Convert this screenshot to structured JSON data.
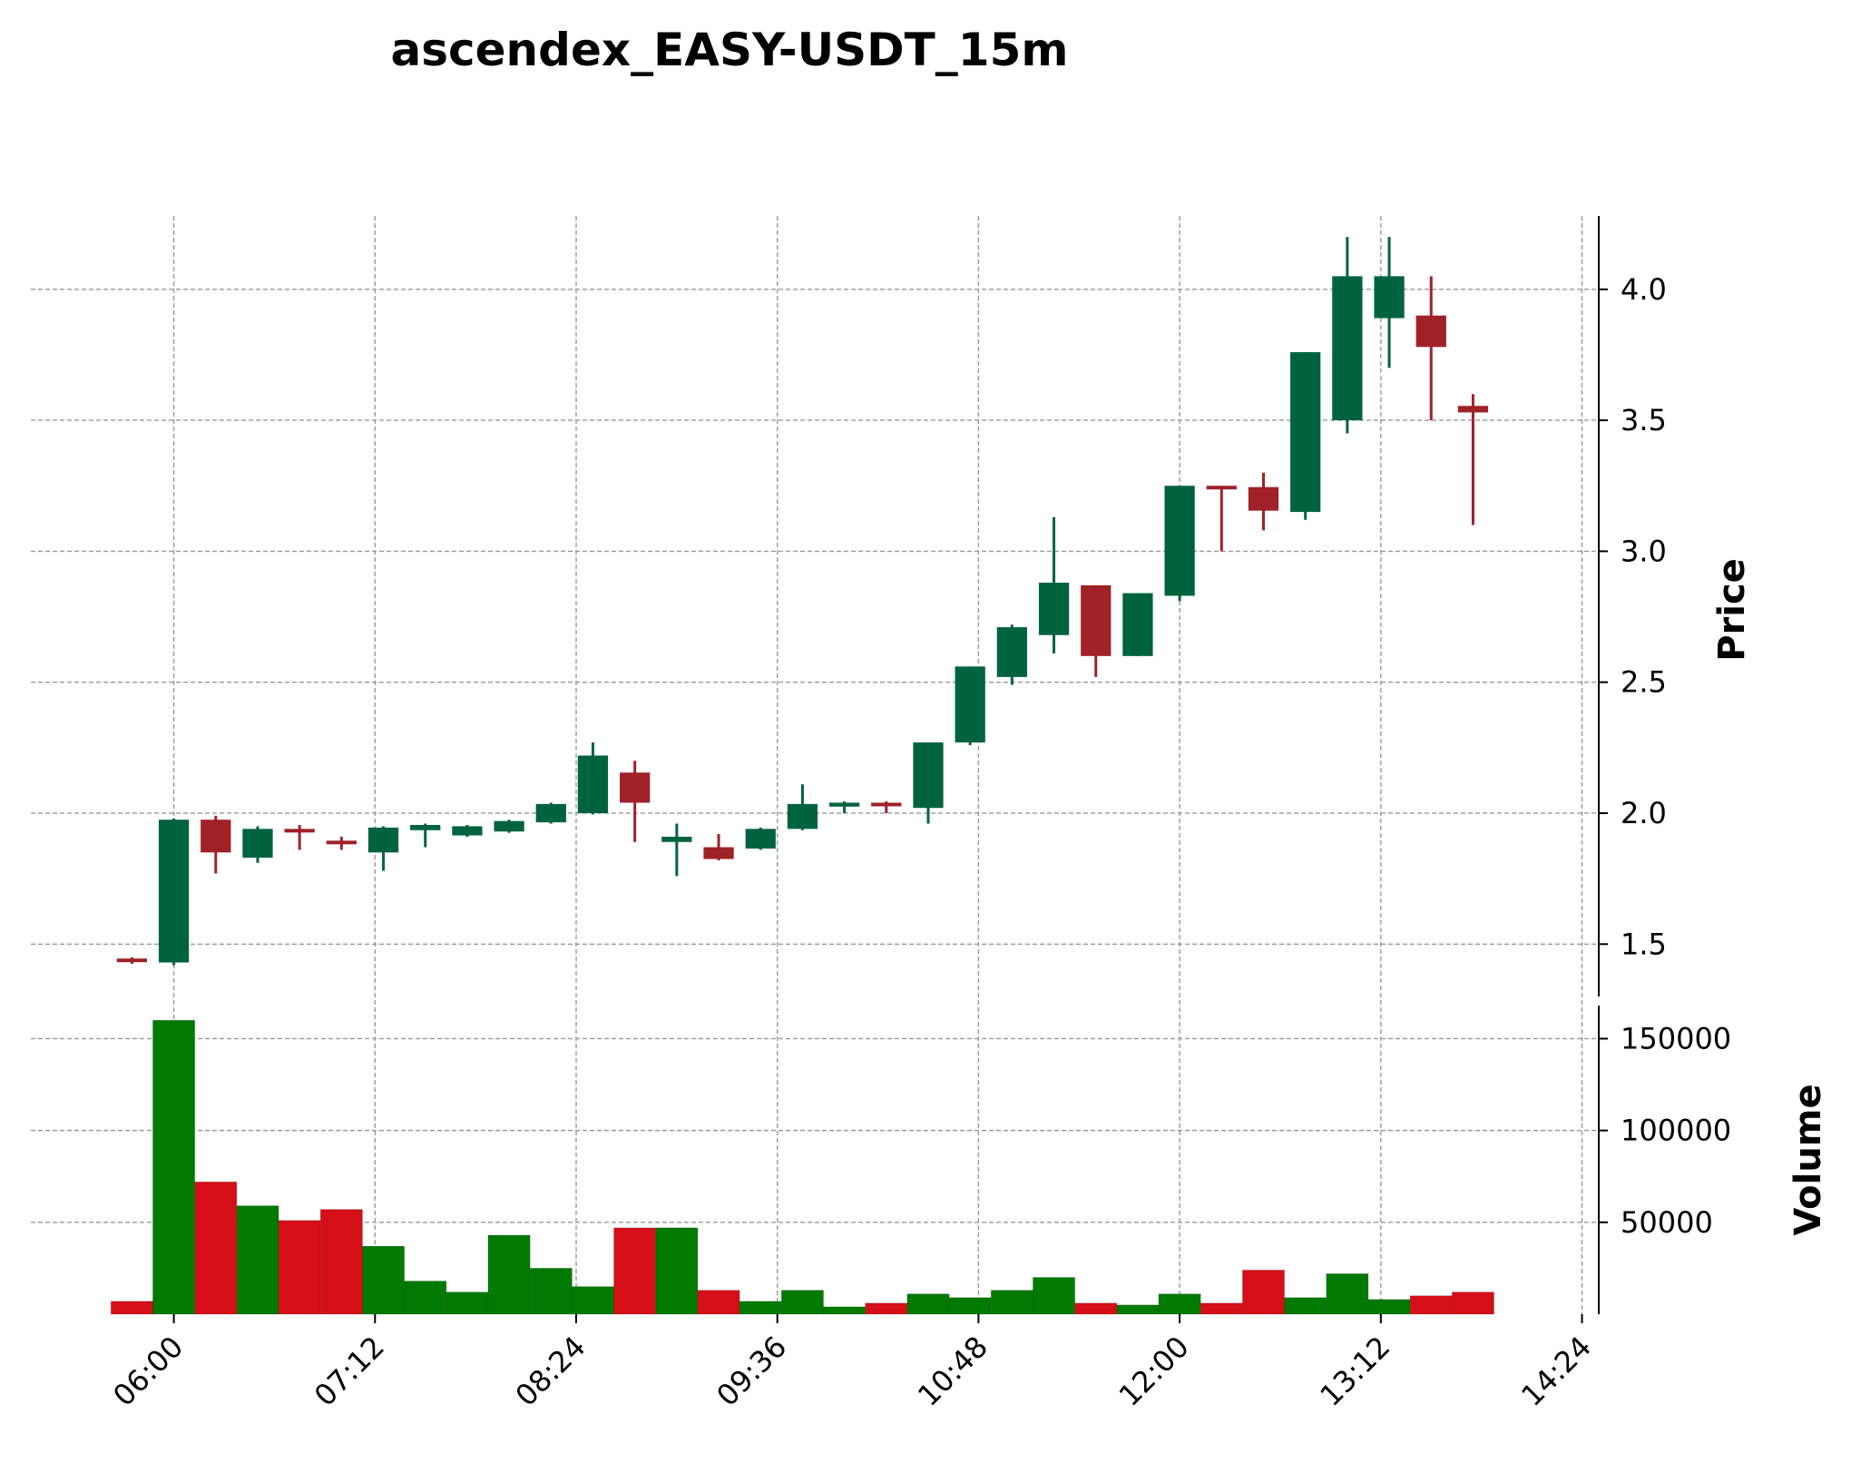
{
  "chart_data": {
    "type": "candlestick",
    "title": "ascendex_EASY-USDT_15m",
    "price_panel": {
      "ylabel": "Price",
      "ylim": [
        1.3,
        4.28
      ],
      "yticks": [
        1.5,
        2.0,
        2.5,
        3.0,
        3.5,
        4.0
      ],
      "ytick_labels": [
        "1.5",
        "2.0",
        "2.5",
        "3.0",
        "3.5",
        "4.0"
      ]
    },
    "volume_panel": {
      "ylabel": "Volume",
      "ylim": [
        0,
        168000
      ],
      "yticks": [
        50000,
        100000,
        150000
      ],
      "ytick_labels": [
        "50000",
        "100000",
        "150000"
      ]
    },
    "xlim": [
      "05:40",
      "14:30"
    ],
    "xticks": [
      "06:00",
      "07:12",
      "08:24",
      "09:36",
      "10:48",
      "12:00",
      "13:12",
      "14:24"
    ],
    "grid": true,
    "colors": {
      "up_candle": "#006340",
      "down_candle": "#a02128",
      "up_volume": "#007a00",
      "down_volume": "#d50f18",
      "grid": "#9a9a9a"
    },
    "candles": [
      {
        "time": "05:45",
        "open": 1.445,
        "high": 1.45,
        "low": 1.425,
        "close": 1.44,
        "volume": 7000
      },
      {
        "time": "06:00",
        "open": 1.43,
        "high": 1.98,
        "low": 1.42,
        "close": 1.975,
        "volume": 160000
      },
      {
        "time": "06:15",
        "open": 1.975,
        "high": 1.99,
        "low": 1.77,
        "close": 1.85,
        "volume": 72000
      },
      {
        "time": "06:30",
        "open": 1.83,
        "high": 1.95,
        "low": 1.81,
        "close": 1.94,
        "volume": 59000
      },
      {
        "time": "06:45",
        "open": 1.94,
        "high": 1.955,
        "low": 1.86,
        "close": 1.935,
        "volume": 51000
      },
      {
        "time": "07:00",
        "open": 1.895,
        "high": 1.91,
        "low": 1.86,
        "close": 1.885,
        "volume": 57000
      },
      {
        "time": "07:15",
        "open": 1.85,
        "high": 1.95,
        "low": 1.78,
        "close": 1.945,
        "volume": 37000
      },
      {
        "time": "07:30",
        "open": 1.935,
        "high": 1.96,
        "low": 1.87,
        "close": 1.955,
        "volume": 18000
      },
      {
        "time": "07:45",
        "open": 1.915,
        "high": 1.955,
        "low": 1.91,
        "close": 1.95,
        "volume": 12000
      },
      {
        "time": "08:00",
        "open": 1.93,
        "high": 1.975,
        "low": 1.925,
        "close": 1.97,
        "volume": 43000
      },
      {
        "time": "08:15",
        "open": 1.965,
        "high": 2.04,
        "low": 1.96,
        "close": 2.035,
        "volume": 25000
      },
      {
        "time": "08:30",
        "open": 2.0,
        "high": 2.27,
        "low": 1.995,
        "close": 2.22,
        "volume": 15000
      },
      {
        "time": "08:45",
        "open": 2.155,
        "high": 2.2,
        "low": 1.89,
        "close": 2.04,
        "volume": 47000
      },
      {
        "time": "09:00",
        "open": 1.89,
        "high": 1.96,
        "low": 1.76,
        "close": 1.91,
        "volume": 47000
      },
      {
        "time": "09:15",
        "open": 1.87,
        "high": 1.92,
        "low": 1.82,
        "close": 1.825,
        "volume": 13000
      },
      {
        "time": "09:30",
        "open": 1.865,
        "high": 1.945,
        "low": 1.86,
        "close": 1.94,
        "volume": 7000
      },
      {
        "time": "09:45",
        "open": 1.94,
        "high": 2.11,
        "low": 1.935,
        "close": 2.035,
        "volume": 13000
      },
      {
        "time": "10:00",
        "open": 2.025,
        "high": 2.045,
        "low": 2.0,
        "close": 2.04,
        "volume": 4000
      },
      {
        "time": "10:15",
        "open": 2.04,
        "high": 2.045,
        "low": 2.0,
        "close": 2.03,
        "volume": 6000
      },
      {
        "time": "10:30",
        "open": 2.02,
        "high": 2.27,
        "low": 1.96,
        "close": 2.27,
        "volume": 11000
      },
      {
        "time": "10:45",
        "open": 2.27,
        "high": 2.56,
        "low": 2.26,
        "close": 2.56,
        "volume": 9000
      },
      {
        "time": "11:00",
        "open": 2.52,
        "high": 2.72,
        "low": 2.49,
        "close": 2.71,
        "volume": 13000
      },
      {
        "time": "11:15",
        "open": 2.68,
        "high": 3.13,
        "low": 2.61,
        "close": 2.88,
        "volume": 20000
      },
      {
        "time": "11:30",
        "open": 2.87,
        "high": 2.87,
        "low": 2.52,
        "close": 2.6,
        "volume": 6000
      },
      {
        "time": "11:45",
        "open": 2.6,
        "high": 2.84,
        "low": 2.6,
        "close": 2.84,
        "volume": 5000
      },
      {
        "time": "12:00",
        "open": 2.83,
        "high": 3.25,
        "low": 2.81,
        "close": 3.25,
        "volume": 11000
      },
      {
        "time": "12:15",
        "open": 3.25,
        "high": 3.25,
        "low": 3.0,
        "close": 3.24,
        "volume": 6000
      },
      {
        "time": "12:30",
        "open": 3.245,
        "high": 3.3,
        "low": 3.08,
        "close": 3.155,
        "volume": 24000
      },
      {
        "time": "12:45",
        "open": 3.15,
        "high": 3.76,
        "low": 3.12,
        "close": 3.76,
        "volume": 9000
      },
      {
        "time": "13:00",
        "open": 3.5,
        "high": 4.2,
        "low": 3.45,
        "close": 4.05,
        "volume": 22000
      },
      {
        "time": "13:15",
        "open": 3.89,
        "high": 4.2,
        "low": 3.7,
        "close": 4.05,
        "volume": 8000
      },
      {
        "time": "13:30",
        "open": 3.9,
        "high": 4.05,
        "low": 3.5,
        "close": 3.78,
        "volume": 10000
      },
      {
        "time": "13:45",
        "open": 3.555,
        "high": 3.6,
        "low": 3.1,
        "close": 3.53,
        "volume": 12000
      }
    ]
  }
}
